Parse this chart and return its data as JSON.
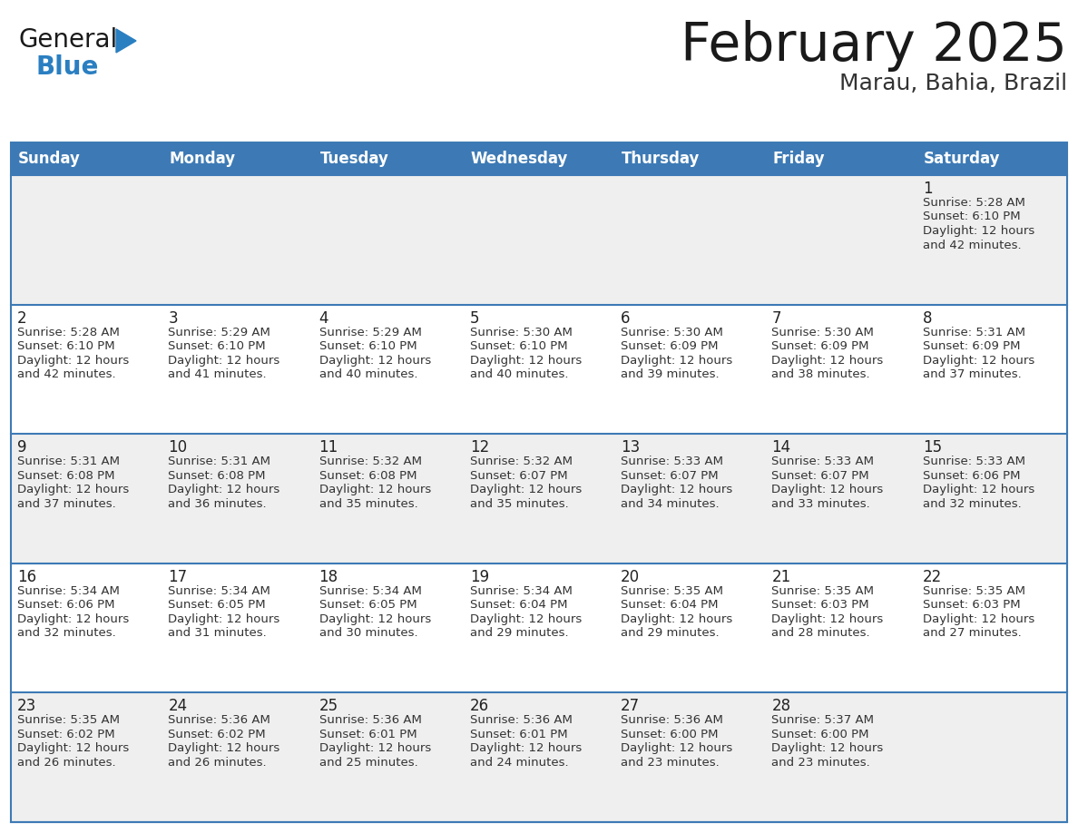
{
  "title": "February 2025",
  "subtitle": "Marau, Bahia, Brazil",
  "header_bg_color": "#3d7ab5",
  "header_text_color": "#ffffff",
  "day_names": [
    "Sunday",
    "Monday",
    "Tuesday",
    "Wednesday",
    "Thursday",
    "Friday",
    "Saturday"
  ],
  "odd_row_bg": "#efefef",
  "even_row_bg": "#ffffff",
  "cell_border_color": "#3d7ab5",
  "title_color": "#1a1a1a",
  "subtitle_color": "#333333",
  "day_num_color": "#222222",
  "info_color": "#333333",
  "calendar_data": {
    "1": {
      "row": 0,
      "col": 6,
      "sunrise": "5:28 AM",
      "sunset": "6:10 PM",
      "daylight": "12 hours",
      "daylight2": "and 42 minutes."
    },
    "2": {
      "row": 1,
      "col": 0,
      "sunrise": "5:28 AM",
      "sunset": "6:10 PM",
      "daylight": "12 hours",
      "daylight2": "and 42 minutes."
    },
    "3": {
      "row": 1,
      "col": 1,
      "sunrise": "5:29 AM",
      "sunset": "6:10 PM",
      "daylight": "12 hours",
      "daylight2": "and 41 minutes."
    },
    "4": {
      "row": 1,
      "col": 2,
      "sunrise": "5:29 AM",
      "sunset": "6:10 PM",
      "daylight": "12 hours",
      "daylight2": "and 40 minutes."
    },
    "5": {
      "row": 1,
      "col": 3,
      "sunrise": "5:30 AM",
      "sunset": "6:10 PM",
      "daylight": "12 hours",
      "daylight2": "and 40 minutes."
    },
    "6": {
      "row": 1,
      "col": 4,
      "sunrise": "5:30 AM",
      "sunset": "6:09 PM",
      "daylight": "12 hours",
      "daylight2": "and 39 minutes."
    },
    "7": {
      "row": 1,
      "col": 5,
      "sunrise": "5:30 AM",
      "sunset": "6:09 PM",
      "daylight": "12 hours",
      "daylight2": "and 38 minutes."
    },
    "8": {
      "row": 1,
      "col": 6,
      "sunrise": "5:31 AM",
      "sunset": "6:09 PM",
      "daylight": "12 hours",
      "daylight2": "and 37 minutes."
    },
    "9": {
      "row": 2,
      "col": 0,
      "sunrise": "5:31 AM",
      "sunset": "6:08 PM",
      "daylight": "12 hours",
      "daylight2": "and 37 minutes."
    },
    "10": {
      "row": 2,
      "col": 1,
      "sunrise": "5:31 AM",
      "sunset": "6:08 PM",
      "daylight": "12 hours",
      "daylight2": "and 36 minutes."
    },
    "11": {
      "row": 2,
      "col": 2,
      "sunrise": "5:32 AM",
      "sunset": "6:08 PM",
      "daylight": "12 hours",
      "daylight2": "and 35 minutes."
    },
    "12": {
      "row": 2,
      "col": 3,
      "sunrise": "5:32 AM",
      "sunset": "6:07 PM",
      "daylight": "12 hours",
      "daylight2": "and 35 minutes."
    },
    "13": {
      "row": 2,
      "col": 4,
      "sunrise": "5:33 AM",
      "sunset": "6:07 PM",
      "daylight": "12 hours",
      "daylight2": "and 34 minutes."
    },
    "14": {
      "row": 2,
      "col": 5,
      "sunrise": "5:33 AM",
      "sunset": "6:07 PM",
      "daylight": "12 hours",
      "daylight2": "and 33 minutes."
    },
    "15": {
      "row": 2,
      "col": 6,
      "sunrise": "5:33 AM",
      "sunset": "6:06 PM",
      "daylight": "12 hours",
      "daylight2": "and 32 minutes."
    },
    "16": {
      "row": 3,
      "col": 0,
      "sunrise": "5:34 AM",
      "sunset": "6:06 PM",
      "daylight": "12 hours",
      "daylight2": "and 32 minutes."
    },
    "17": {
      "row": 3,
      "col": 1,
      "sunrise": "5:34 AM",
      "sunset": "6:05 PM",
      "daylight": "12 hours",
      "daylight2": "and 31 minutes."
    },
    "18": {
      "row": 3,
      "col": 2,
      "sunrise": "5:34 AM",
      "sunset": "6:05 PM",
      "daylight": "12 hours",
      "daylight2": "and 30 minutes."
    },
    "19": {
      "row": 3,
      "col": 3,
      "sunrise": "5:34 AM",
      "sunset": "6:04 PM",
      "daylight": "12 hours",
      "daylight2": "and 29 minutes."
    },
    "20": {
      "row": 3,
      "col": 4,
      "sunrise": "5:35 AM",
      "sunset": "6:04 PM",
      "daylight": "12 hours",
      "daylight2": "and 29 minutes."
    },
    "21": {
      "row": 3,
      "col": 5,
      "sunrise": "5:35 AM",
      "sunset": "6:03 PM",
      "daylight": "12 hours",
      "daylight2": "and 28 minutes."
    },
    "22": {
      "row": 3,
      "col": 6,
      "sunrise": "5:35 AM",
      "sunset": "6:03 PM",
      "daylight": "12 hours",
      "daylight2": "and 27 minutes."
    },
    "23": {
      "row": 4,
      "col": 0,
      "sunrise": "5:35 AM",
      "sunset": "6:02 PM",
      "daylight": "12 hours",
      "daylight2": "and 26 minutes."
    },
    "24": {
      "row": 4,
      "col": 1,
      "sunrise": "5:36 AM",
      "sunset": "6:02 PM",
      "daylight": "12 hours",
      "daylight2": "and 26 minutes."
    },
    "25": {
      "row": 4,
      "col": 2,
      "sunrise": "5:36 AM",
      "sunset": "6:01 PM",
      "daylight": "12 hours",
      "daylight2": "and 25 minutes."
    },
    "26": {
      "row": 4,
      "col": 3,
      "sunrise": "5:36 AM",
      "sunset": "6:01 PM",
      "daylight": "12 hours",
      "daylight2": "and 24 minutes."
    },
    "27": {
      "row": 4,
      "col": 4,
      "sunrise": "5:36 AM",
      "sunset": "6:00 PM",
      "daylight": "12 hours",
      "daylight2": "and 23 minutes."
    },
    "28": {
      "row": 4,
      "col": 5,
      "sunrise": "5:37 AM",
      "sunset": "6:00 PM",
      "daylight": "12 hours",
      "daylight2": "and 23 minutes."
    }
  },
  "num_rows": 5,
  "logo_general_color": "#1a1a1a",
  "logo_blue_color": "#2a7fc1",
  "logo_triangle_color": "#2a7fc1"
}
